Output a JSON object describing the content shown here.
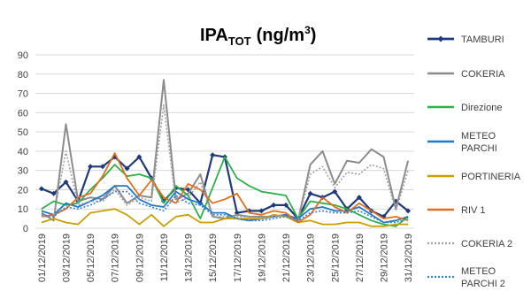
{
  "chart_data": {
    "type": "line",
    "title": {
      "main": "IPA",
      "sub": "TOT",
      "unit": "(ng/m",
      "sup": "3",
      "close": ")"
    },
    "ylim": [
      0,
      90
    ],
    "yticks": [
      0,
      10,
      20,
      30,
      40,
      50,
      60,
      70,
      80,
      90
    ],
    "grid": true,
    "legend_position": "right",
    "x": [
      "01/12/2019",
      "02/12/2019",
      "03/12/2019",
      "04/12/2019",
      "05/12/2019",
      "06/12/2019",
      "07/12/2019",
      "08/12/2019",
      "09/12/2019",
      "10/12/2019",
      "11/12/2019",
      "12/12/2019",
      "13/12/2019",
      "14/12/2019",
      "15/12/2019",
      "16/12/2019",
      "17/12/2019",
      "18/12/2019",
      "19/12/2019",
      "20/12/2019",
      "21/12/2019",
      "22/12/2019",
      "23/12/2019",
      "24/12/2019",
      "25/12/2019",
      "26/12/2019",
      "27/12/2019",
      "28/12/2019",
      "29/12/2019",
      "30/12/2019",
      "31/12/2019"
    ],
    "xtick_labels": [
      "01/12/2019",
      "03/12/2019",
      "05/12/2019",
      "07/12/2019",
      "09/12/2019",
      "11/12/2019",
      "13/12/2019",
      "15/12/2019",
      "17/12/2019",
      "19/12/2019",
      "21/12/2019",
      "23/12/2019",
      "25/12/2019",
      "27/12/2019",
      "29/12/2019",
      "31/12/2019"
    ],
    "series": [
      {
        "name": "TAMBURI",
        "color": "#1f3a7a",
        "dash": "",
        "markers": true,
        "width": 2.2,
        "values": [
          20.5,
          18,
          24,
          14,
          32,
          32,
          37,
          31,
          37,
          26,
          14,
          21,
          20,
          13,
          38,
          37,
          8,
          9,
          9,
          12,
          12,
          5,
          18,
          16,
          19,
          10,
          16,
          9,
          6,
          14,
          9
        ]
      },
      {
        "name": "COKERIA",
        "color": "#8c8c8c",
        "dash": "",
        "markers": false,
        "width": 2,
        "values": [
          8,
          4,
          54,
          14,
          16,
          15,
          22,
          13,
          17,
          16,
          77,
          15,
          18,
          28,
          6,
          5,
          7,
          6,
          6,
          6,
          7,
          4,
          33,
          40,
          23,
          35,
          34,
          41,
          37,
          10,
          35
        ]
      },
      {
        "name": "Direzione",
        "color": "#2eb04c",
        "dash": "",
        "markers": false,
        "width": 1.8,
        "values": [
          10,
          14,
          12,
          13,
          20,
          26,
          33,
          27,
          28,
          26,
          13,
          22,
          17,
          5,
          21,
          37,
          26,
          22,
          19,
          18,
          17,
          5,
          14,
          13,
          12,
          10,
          7,
          4,
          2,
          1,
          6
        ]
      },
      {
        "name": "METEO PARCHI",
        "color": "#1f78c8",
        "dash": "",
        "markers": false,
        "width": 1.8,
        "values": [
          9,
          7,
          13,
          11,
          14,
          17,
          22,
          22,
          15,
          12,
          11,
          19,
          15,
          13,
          8,
          8,
          5,
          4,
          5,
          6,
          7,
          5,
          10,
          11,
          9,
          9,
          11,
          7,
          3,
          4,
          6
        ]
      },
      {
        "name": "PORTINERIA",
        "color": "#c8a000",
        "dash": "",
        "markers": false,
        "width": 1.8,
        "values": [
          3,
          5,
          3,
          2,
          8,
          9,
          10,
          7,
          2,
          7,
          1,
          6,
          7,
          3,
          3,
          5,
          5,
          5,
          5,
          7,
          6,
          3,
          4,
          2,
          2,
          3,
          3,
          1,
          1,
          2,
          2
        ]
      },
      {
        "name": "RIV 1",
        "color": "#e07020",
        "dash": "",
        "markers": false,
        "width": 1.8,
        "values": [
          6,
          7,
          10,
          16,
          18,
          27,
          39,
          26,
          17,
          25,
          16,
          13,
          23,
          20,
          13,
          15,
          18,
          8,
          7,
          9,
          8,
          3,
          7,
          16,
          11,
          8,
          13,
          9,
          5,
          6,
          4
        ]
      },
      {
        "name": "COKERIA 2",
        "color": "#a0a0a0",
        "dash": "2,2",
        "markers": false,
        "width": 1.6,
        "values": [
          6,
          6,
          40,
          12,
          14,
          14,
          20,
          12,
          16,
          14,
          64,
          13,
          16,
          24,
          6,
          6,
          6,
          6,
          5,
          6,
          6,
          4,
          28,
          32,
          21,
          29,
          28,
          33,
          31,
          9,
          30
        ]
      },
      {
        "name": "METEO PARCHI 2",
        "color": "#3a7fd0",
        "dash": "2,2",
        "markers": false,
        "width": 1.6,
        "values": [
          7,
          6,
          11,
          10,
          12,
          15,
          19,
          19,
          13,
          11,
          9,
          17,
          13,
          12,
          7,
          7,
          5,
          4,
          4,
          5,
          6,
          4,
          8,
          9,
          8,
          8,
          9,
          6,
          3,
          3,
          5
        ]
      }
    ],
    "legend": [
      {
        "line1": "TAMBURI",
        "line2": ""
      },
      {
        "line1": "COKERIA",
        "line2": ""
      },
      {
        "line1": "Direzione",
        "line2": ""
      },
      {
        "line1": "METEO",
        "line2": "PARCHI"
      },
      {
        "line1": "PORTINERIA",
        "line2": ""
      },
      {
        "line1": "RIV 1",
        "line2": ""
      },
      {
        "line1": "COKERIA 2",
        "line2": ""
      },
      {
        "line1": "METEO",
        "line2": "PARCHI 2"
      }
    ]
  }
}
